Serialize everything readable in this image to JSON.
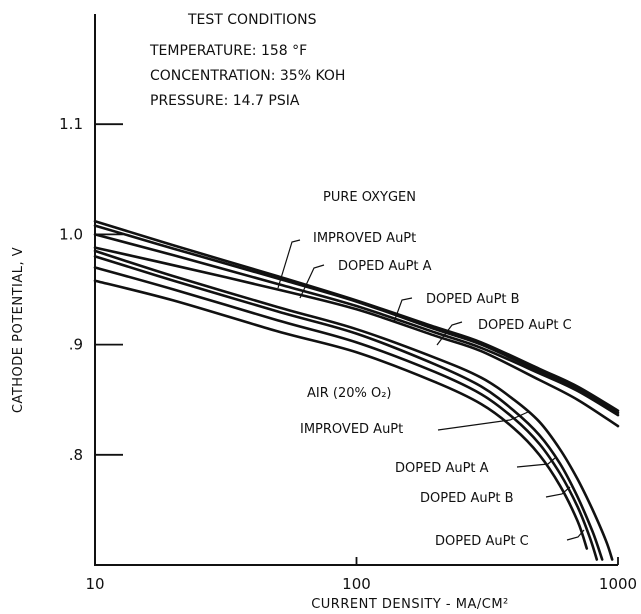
{
  "test_conditions": {
    "title": "TEST CONDITIONS",
    "temperature": "TEMPERATURE:  158 °F",
    "concentration": "CONCENTRATION:  35% KOH",
    "pressure": "PRESSURE:  14.7 PSIA"
  },
  "chart_data": {
    "type": "line",
    "xlabel": "CURRENT DENSITY - MA/CM²",
    "ylabel": "CATHODE POTENTIAL, V",
    "x_scale": "log",
    "xlim": [
      10,
      1000
    ],
    "ylim": [
      0.7,
      1.2
    ],
    "x_ticks": [
      10,
      100,
      1000
    ],
    "x_tick_labels": [
      "10",
      "100",
      "1000"
    ],
    "y_ticks": [
      0.8,
      0.9,
      1.0,
      1.1
    ],
    "y_tick_labels": [
      ".8",
      ".9",
      "1.0",
      "1.1"
    ],
    "grid": false,
    "group_labels": {
      "oxygen": "PURE OXYGEN",
      "air": "AIR (20% O₂)"
    },
    "series": [
      {
        "name": "IMPROVED AuPt",
        "group": "oxygen",
        "x": [
          10,
          20,
          50,
          100,
          200,
          300,
          500,
          700,
          1000
        ],
        "y": [
          1.012,
          0.99,
          0.962,
          0.94,
          0.916,
          0.902,
          0.878,
          0.862,
          0.84
        ]
      },
      {
        "name": "DOPED AuPt A",
        "group": "oxygen",
        "x": [
          10,
          20,
          50,
          100,
          200,
          300,
          500,
          700,
          1000
        ],
        "y": [
          1.008,
          0.987,
          0.96,
          0.939,
          0.914,
          0.9,
          0.876,
          0.86,
          0.838
        ]
      },
      {
        "name": "DOPED AuPt B",
        "group": "oxygen",
        "x": [
          10,
          20,
          50,
          100,
          200,
          300,
          500,
          700,
          1000
        ],
        "y": [
          1.0,
          0.981,
          0.955,
          0.935,
          0.911,
          0.897,
          0.874,
          0.858,
          0.836
        ]
      },
      {
        "name": "DOPED AuPt C",
        "group": "oxygen",
        "x": [
          10,
          20,
          50,
          100,
          200,
          300,
          500,
          700,
          1000
        ],
        "y": [
          0.988,
          0.972,
          0.95,
          0.932,
          0.908,
          0.894,
          0.868,
          0.85,
          0.826
        ]
      },
      {
        "name": "IMPROVED AuPt",
        "group": "air",
        "x": [
          10,
          20,
          50,
          100,
          200,
          300,
          400,
          500,
          600,
          700,
          800,
          900,
          950
        ],
        "y": [
          0.985,
          0.962,
          0.934,
          0.914,
          0.888,
          0.87,
          0.85,
          0.83,
          0.805,
          0.778,
          0.75,
          0.722,
          0.705
        ]
      },
      {
        "name": "DOPED AuPt A",
        "group": "air",
        "x": [
          10,
          20,
          50,
          100,
          200,
          300,
          400,
          500,
          600,
          700,
          800,
          870
        ],
        "y": [
          0.98,
          0.958,
          0.93,
          0.91,
          0.882,
          0.862,
          0.84,
          0.818,
          0.792,
          0.762,
          0.73,
          0.705
        ]
      },
      {
        "name": "DOPED AuPt B",
        "group": "air",
        "x": [
          10,
          20,
          50,
          100,
          200,
          300,
          400,
          500,
          600,
          700,
          780,
          830
        ],
        "y": [
          0.97,
          0.95,
          0.922,
          0.902,
          0.875,
          0.855,
          0.833,
          0.81,
          0.783,
          0.753,
          0.725,
          0.705
        ]
      },
      {
        "name": "DOPED AuPt C",
        "group": "air",
        "x": [
          10,
          20,
          50,
          100,
          200,
          300,
          400,
          500,
          600,
          700,
          760
        ],
        "y": [
          0.958,
          0.94,
          0.912,
          0.893,
          0.866,
          0.846,
          0.824,
          0.8,
          0.772,
          0.74,
          0.715
        ]
      }
    ]
  }
}
